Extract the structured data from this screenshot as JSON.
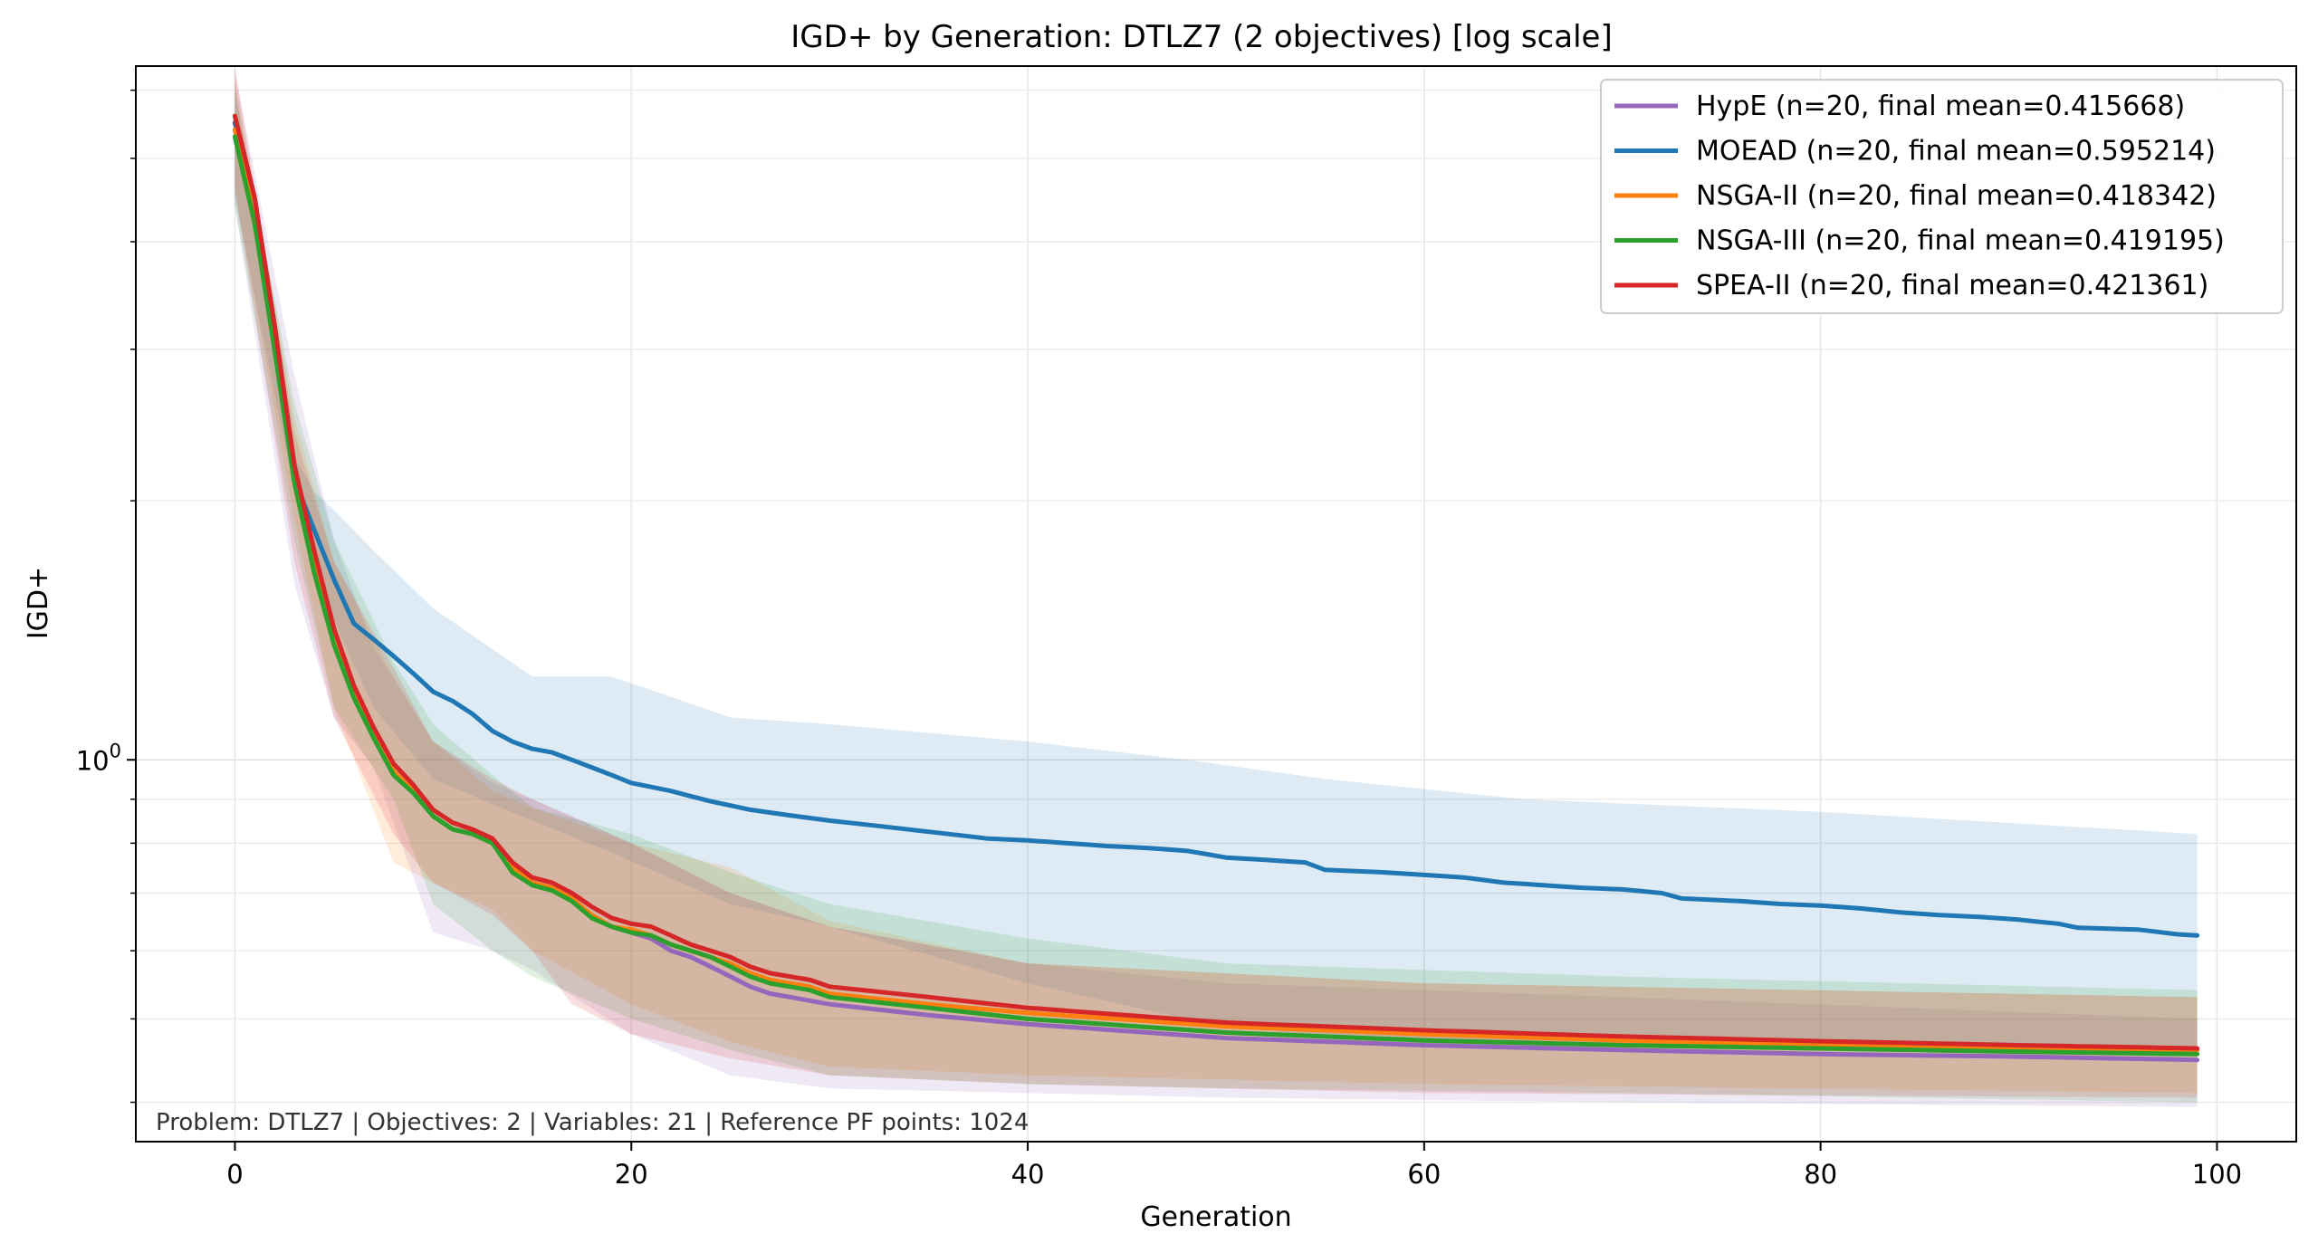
{
  "chart_data": {
    "type": "line",
    "title": "IGD+ by Generation: DTLZ7 (2 objectives) [log scale]",
    "xlabel": "Generation",
    "ylabel": "IGD+",
    "yscale": "log",
    "xlim": [
      -5,
      104
    ],
    "ylim": [
      0.36,
      6.4
    ],
    "x_ticks": [
      0,
      20,
      40,
      60,
      80,
      100
    ],
    "x_tick_labels": [
      "0",
      "20",
      "40",
      "60",
      "80",
      "100"
    ],
    "y_major_ticks": [
      1
    ],
    "y_major_tick_label": {
      "base": "10",
      "exp": "0"
    },
    "y_minor_ticks": [
      0.4,
      0.5,
      0.6,
      0.7,
      0.8,
      0.9,
      2,
      3,
      4,
      5,
      6
    ],
    "grid": true,
    "legend_position": "top-right",
    "annotation": "Problem: DTLZ7 | Objectives: 2 | Variables: 21 | Reference PF points: 1024",
    "series": [
      {
        "name": "HypE",
        "label": "HypE (n=20, final mean=0.415668)",
        "color": "#9467bd",
        "knots": [
          [
            0,
            5.5
          ],
          [
            1,
            4.4
          ],
          [
            2,
            3.2
          ],
          [
            3,
            2.2
          ],
          [
            4,
            1.72
          ],
          [
            5,
            1.4
          ],
          [
            6,
            1.2
          ],
          [
            7,
            1.08
          ],
          [
            8,
            0.97
          ],
          [
            9,
            0.92
          ],
          [
            10,
            0.86
          ],
          [
            11,
            0.83
          ],
          [
            12,
            0.82
          ],
          [
            13,
            0.8
          ],
          [
            14,
            0.75
          ],
          [
            15,
            0.72
          ],
          [
            16,
            0.71
          ],
          [
            17,
            0.69
          ],
          [
            18,
            0.66
          ],
          [
            19,
            0.64
          ],
          [
            20,
            0.63
          ],
          [
            21,
            0.62
          ],
          [
            22,
            0.6
          ],
          [
            23,
            0.59
          ],
          [
            24,
            0.575
          ],
          [
            25,
            0.56
          ],
          [
            26,
            0.545
          ],
          [
            27,
            0.535
          ],
          [
            28,
            0.53
          ],
          [
            29,
            0.525
          ],
          [
            30,
            0.52
          ],
          [
            35,
            0.505
          ],
          [
            40,
            0.493
          ],
          [
            50,
            0.475
          ],
          [
            60,
            0.466
          ],
          [
            70,
            0.46
          ],
          [
            80,
            0.455
          ],
          [
            90,
            0.452
          ],
          [
            99,
            0.448
          ]
        ],
        "band": [
          [
            0,
            6.3,
            4.4
          ],
          [
            3,
            2.8,
            1.6
          ],
          [
            5,
            1.8,
            1.12
          ],
          [
            7,
            1.35,
            0.98
          ],
          [
            10,
            1.05,
            0.63
          ],
          [
            13,
            0.94,
            0.6
          ],
          [
            15,
            0.9,
            0.57
          ],
          [
            20,
            0.8,
            0.48
          ],
          [
            25,
            0.7,
            0.43
          ],
          [
            30,
            0.64,
            0.415
          ],
          [
            40,
            0.58,
            0.41
          ],
          [
            50,
            0.55,
            0.405
          ],
          [
            70,
            0.53,
            0.4
          ],
          [
            99,
            0.5,
            0.395
          ]
        ],
        "final_mean": 0.415668
      },
      {
        "name": "MOEAD",
        "label": "MOEAD (n=20, final mean=0.595214)",
        "color": "#1f77b4",
        "knots": [
          [
            0,
            5.5
          ],
          [
            1,
            4.4
          ],
          [
            2,
            3.0
          ],
          [
            3,
            2.12
          ],
          [
            4,
            1.85
          ],
          [
            5,
            1.62
          ],
          [
            6,
            1.44
          ],
          [
            7,
            1.38
          ],
          [
            8,
            1.32
          ],
          [
            9,
            1.26
          ],
          [
            10,
            1.2
          ],
          [
            11,
            1.17
          ],
          [
            12,
            1.13
          ],
          [
            13,
            1.08
          ],
          [
            14,
            1.05
          ],
          [
            15,
            1.03
          ],
          [
            16,
            1.02
          ],
          [
            17,
            1.0
          ],
          [
            18,
            0.98
          ],
          [
            19,
            0.96
          ],
          [
            20,
            0.94
          ],
          [
            22,
            0.92
          ],
          [
            24,
            0.895
          ],
          [
            26,
            0.875
          ],
          [
            28,
            0.862
          ],
          [
            30,
            0.85
          ],
          [
            32,
            0.84
          ],
          [
            34,
            0.83
          ],
          [
            36,
            0.82
          ],
          [
            38,
            0.81
          ],
          [
            40,
            0.806
          ],
          [
            42,
            0.8
          ],
          [
            44,
            0.794
          ],
          [
            46,
            0.79
          ],
          [
            48,
            0.784
          ],
          [
            50,
            0.77
          ],
          [
            52,
            0.765
          ],
          [
            54,
            0.76
          ],
          [
            55,
            0.745
          ],
          [
            58,
            0.74
          ],
          [
            60,
            0.735
          ],
          [
            62,
            0.73
          ],
          [
            64,
            0.72
          ],
          [
            66,
            0.715
          ],
          [
            68,
            0.71
          ],
          [
            70,
            0.707
          ],
          [
            72,
            0.7
          ],
          [
            73,
            0.69
          ],
          [
            76,
            0.685
          ],
          [
            78,
            0.68
          ],
          [
            80,
            0.677
          ],
          [
            82,
            0.672
          ],
          [
            84,
            0.665
          ],
          [
            86,
            0.66
          ],
          [
            88,
            0.657
          ],
          [
            90,
            0.652
          ],
          [
            92,
            0.645
          ],
          [
            93,
            0.638
          ],
          [
            96,
            0.635
          ],
          [
            98,
            0.627
          ],
          [
            99,
            0.625
          ]
        ],
        "band": [
          [
            0,
            6.1,
            4.5
          ],
          [
            3,
            2.25,
            2.05
          ],
          [
            4,
            2.05,
            1.65
          ],
          [
            5,
            1.95,
            1.45
          ],
          [
            7,
            1.75,
            1.15
          ],
          [
            10,
            1.5,
            0.95
          ],
          [
            15,
            1.25,
            0.85
          ],
          [
            19,
            1.25,
            0.78
          ],
          [
            25,
            1.12,
            0.68
          ],
          [
            30,
            1.1,
            0.64
          ],
          [
            40,
            1.05,
            0.55
          ],
          [
            48,
            1.0,
            0.5
          ],
          [
            55,
            0.95,
            0.475
          ],
          [
            65,
            0.9,
            0.465
          ],
          [
            80,
            0.87,
            0.46
          ],
          [
            99,
            0.82,
            0.455
          ]
        ],
        "final_mean": 0.595214
      },
      {
        "name": "NSGA-II",
        "label": "NSGA-II (n=20, final mean=0.418342)",
        "color": "#ff7f0e",
        "knots": [
          [
            0,
            5.4
          ],
          [
            1,
            4.3
          ],
          [
            2,
            3.1
          ],
          [
            3,
            2.15
          ],
          [
            4,
            1.7
          ],
          [
            5,
            1.38
          ],
          [
            6,
            1.2
          ],
          [
            7,
            1.07
          ],
          [
            8,
            0.97
          ],
          [
            9,
            0.92
          ],
          [
            10,
            0.86
          ],
          [
            11,
            0.83
          ],
          [
            12,
            0.82
          ],
          [
            13,
            0.8
          ],
          [
            14,
            0.75
          ],
          [
            15,
            0.72
          ],
          [
            16,
            0.71
          ],
          [
            17,
            0.69
          ],
          [
            18,
            0.66
          ],
          [
            19,
            0.64
          ],
          [
            20,
            0.635
          ],
          [
            21,
            0.625
          ],
          [
            22,
            0.61
          ],
          [
            23,
            0.6
          ],
          [
            24,
            0.59
          ],
          [
            25,
            0.58
          ],
          [
            26,
            0.565
          ],
          [
            27,
            0.555
          ],
          [
            28,
            0.55
          ],
          [
            29,
            0.545
          ],
          [
            30,
            0.535
          ],
          [
            35,
            0.52
          ],
          [
            40,
            0.508
          ],
          [
            50,
            0.49
          ],
          [
            60,
            0.48
          ],
          [
            70,
            0.472
          ],
          [
            80,
            0.467
          ],
          [
            90,
            0.463
          ],
          [
            99,
            0.46
          ]
        ],
        "band": [
          [
            0,
            6.2,
            4.6
          ],
          [
            3,
            2.5,
            1.9
          ],
          [
            5,
            1.7,
            1.15
          ],
          [
            8,
            1.25,
            0.76
          ],
          [
            10,
            1.05,
            0.72
          ],
          [
            13,
            0.92,
            0.67
          ],
          [
            15,
            0.88,
            0.6
          ],
          [
            20,
            0.8,
            0.52
          ],
          [
            25,
            0.75,
            0.47
          ],
          [
            30,
            0.65,
            0.44
          ],
          [
            40,
            0.58,
            0.43
          ],
          [
            60,
            0.55,
            0.42
          ],
          [
            99,
            0.53,
            0.41
          ]
        ],
        "final_mean": 0.418342
      },
      {
        "name": "NSGA-III",
        "label": "NSGA-III (n=20, final mean=0.419195)",
        "color": "#2ca02c",
        "knots": [
          [
            0,
            5.3
          ],
          [
            1,
            4.2
          ],
          [
            2,
            3.0
          ],
          [
            3,
            2.1
          ],
          [
            4,
            1.65
          ],
          [
            5,
            1.36
          ],
          [
            6,
            1.18
          ],
          [
            7,
            1.06
          ],
          [
            8,
            0.96
          ],
          [
            9,
            0.915
          ],
          [
            10,
            0.86
          ],
          [
            11,
            0.83
          ],
          [
            12,
            0.82
          ],
          [
            13,
            0.8
          ],
          [
            14,
            0.74
          ],
          [
            15,
            0.715
          ],
          [
            16,
            0.705
          ],
          [
            17,
            0.685
          ],
          [
            18,
            0.655
          ],
          [
            19,
            0.64
          ],
          [
            20,
            0.63
          ],
          [
            21,
            0.625
          ],
          [
            22,
            0.61
          ],
          [
            23,
            0.6
          ],
          [
            24,
            0.59
          ],
          [
            25,
            0.575
          ],
          [
            26,
            0.56
          ],
          [
            27,
            0.55
          ],
          [
            28,
            0.545
          ],
          [
            29,
            0.54
          ],
          [
            30,
            0.53
          ],
          [
            35,
            0.515
          ],
          [
            40,
            0.5
          ],
          [
            50,
            0.482
          ],
          [
            60,
            0.472
          ],
          [
            70,
            0.466
          ],
          [
            80,
            0.462
          ],
          [
            90,
            0.458
          ],
          [
            99,
            0.455
          ]
        ],
        "band": [
          [
            0,
            6.0,
            4.4
          ],
          [
            3,
            2.6,
            1.8
          ],
          [
            5,
            1.8,
            1.15
          ],
          [
            8,
            1.3,
            0.9
          ],
          [
            10,
            1.1,
            0.68
          ],
          [
            13,
            0.96,
            0.6
          ],
          [
            15,
            0.88,
            0.56
          ],
          [
            20,
            0.82,
            0.5
          ],
          [
            25,
            0.74,
            0.46
          ],
          [
            30,
            0.68,
            0.43
          ],
          [
            40,
            0.62,
            0.42
          ],
          [
            50,
            0.58,
            0.415
          ],
          [
            70,
            0.56,
            0.41
          ],
          [
            99,
            0.54,
            0.4
          ]
        ],
        "final_mean": 0.419195
      },
      {
        "name": "SPEA-II",
        "label": "SPEA-II (n=20, final mean=0.421361)",
        "color": "#d62728",
        "knots": [
          [
            0,
            5.6
          ],
          [
            1,
            4.5
          ],
          [
            2,
            3.2
          ],
          [
            3,
            2.2
          ],
          [
            4,
            1.75
          ],
          [
            5,
            1.42
          ],
          [
            6,
            1.22
          ],
          [
            7,
            1.09
          ],
          [
            8,
            0.99
          ],
          [
            9,
            0.935
          ],
          [
            10,
            0.875
          ],
          [
            11,
            0.845
          ],
          [
            12,
            0.83
          ],
          [
            13,
            0.81
          ],
          [
            14,
            0.76
          ],
          [
            15,
            0.73
          ],
          [
            16,
            0.72
          ],
          [
            17,
            0.7
          ],
          [
            18,
            0.675
          ],
          [
            19,
            0.655
          ],
          [
            20,
            0.645
          ],
          [
            21,
            0.64
          ],
          [
            22,
            0.625
          ],
          [
            23,
            0.61
          ],
          [
            24,
            0.6
          ],
          [
            25,
            0.59
          ],
          [
            26,
            0.575
          ],
          [
            27,
            0.565
          ],
          [
            28,
            0.56
          ],
          [
            29,
            0.555
          ],
          [
            30,
            0.545
          ],
          [
            35,
            0.53
          ],
          [
            40,
            0.515
          ],
          [
            50,
            0.495
          ],
          [
            60,
            0.485
          ],
          [
            70,
            0.477
          ],
          [
            80,
            0.471
          ],
          [
            90,
            0.466
          ],
          [
            99,
            0.462
          ]
        ],
        "band": [
          [
            0,
            6.4,
            4.6
          ],
          [
            3,
            2.4,
            1.7
          ],
          [
            5,
            1.7,
            1.12
          ],
          [
            8,
            1.28,
            0.82
          ],
          [
            10,
            1.05,
            0.72
          ],
          [
            13,
            0.95,
            0.66
          ],
          [
            15,
            0.9,
            0.6
          ],
          [
            17,
            0.86,
            0.52
          ],
          [
            20,
            0.8,
            0.48
          ],
          [
            25,
            0.7,
            0.45
          ],
          [
            30,
            0.64,
            0.43
          ],
          [
            40,
            0.58,
            0.42
          ],
          [
            60,
            0.55,
            0.41
          ],
          [
            99,
            0.53,
            0.405
          ]
        ],
        "final_mean": 0.421361
      }
    ]
  }
}
